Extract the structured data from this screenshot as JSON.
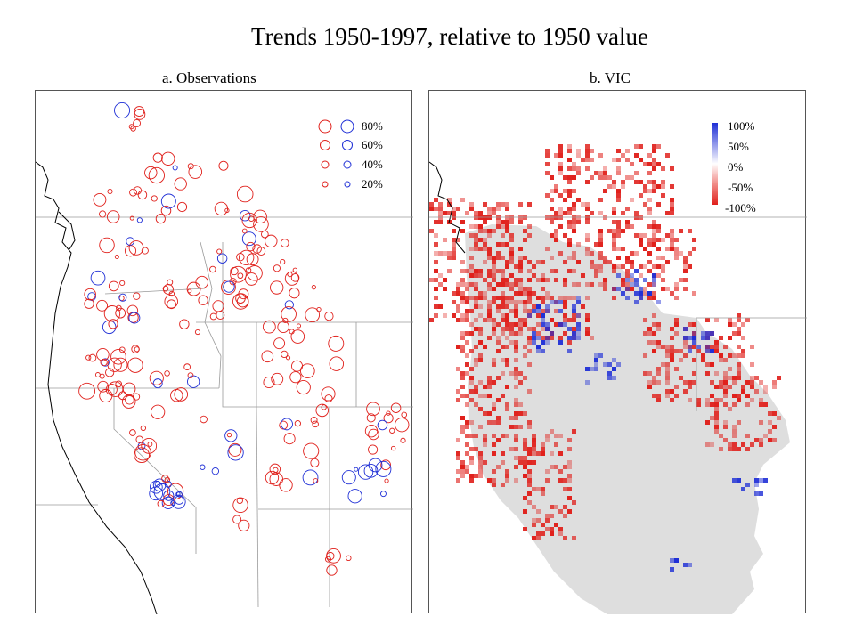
{
  "title": "Trends 1950-1997, relative to 1950 value",
  "panel_a": {
    "title": "a. Observations",
    "legend": [
      "80%",
      "60%",
      "40%",
      "20%"
    ],
    "legend_sizes": [
      80,
      60,
      40,
      20
    ]
  },
  "panel_b": {
    "title": "b. VIC",
    "legend": [
      "100%",
      "50%",
      "0%",
      "-50%",
      "-100%"
    ],
    "legend_values": [
      100,
      50,
      0,
      -50,
      -100
    ]
  },
  "colors": {
    "decrease": "#e0201b",
    "increase": "#1f2fd6",
    "background_grid": "#dedede",
    "outline": "#9a9a9a"
  }
}
